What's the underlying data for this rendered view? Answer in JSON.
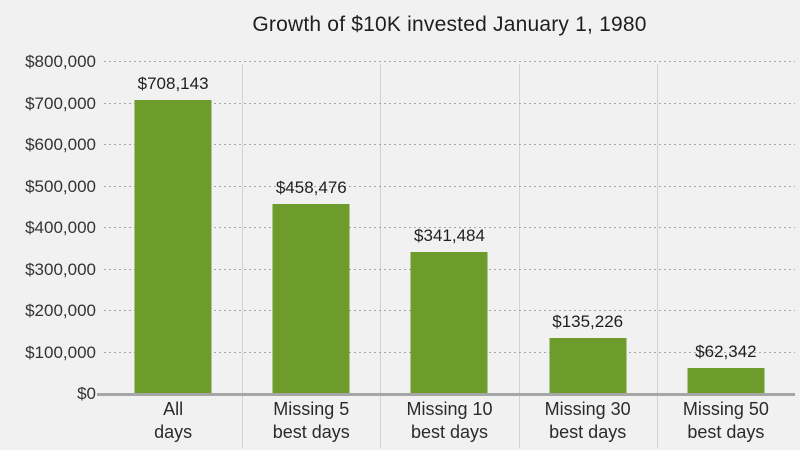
{
  "title": "Growth of $10K invested January 1, 1980",
  "colors": {
    "background": "#F1F1F1",
    "bar": "#6D9C2C",
    "text": "#2B2B2B",
    "axis_line": "#A6A6A6",
    "gridline_dotted": "#A6A6A6",
    "separator": "#D2D2D2"
  },
  "chart_data": {
    "type": "bar",
    "title": "Growth of $10K invested January 1, 1980",
    "categories": [
      "All days",
      "Missing 5 best days",
      "Missing 10 best days",
      "Missing 30 best days",
      "Missing 50 best days"
    ],
    "category_lines": [
      [
        "All",
        "days"
      ],
      [
        "Missing 5",
        "best days"
      ],
      [
        "Missing 10",
        "best days"
      ],
      [
        "Missing 30",
        "best days"
      ],
      [
        "Missing 50",
        "best days"
      ]
    ],
    "values": [
      708143,
      458476,
      341484,
      135226,
      62342
    ],
    "value_labels": [
      "$708,143",
      "$458,476",
      "$341,484",
      "$135,226",
      "$62,342"
    ],
    "xlabel": "",
    "ylabel": "",
    "ylim": [
      0,
      800000
    ],
    "ytick_step": 100000,
    "ytick_labels": [
      "$0",
      "$100,000",
      "$200,000",
      "$300,000",
      "$400,000",
      "$500,000",
      "$600,000",
      "$700,000",
      "$800,000"
    ],
    "grid": "horizontal dotted gridlines at each $100,000; solid vertical separators between categories",
    "legend": "none",
    "bar_color": "#6D9C2C"
  }
}
